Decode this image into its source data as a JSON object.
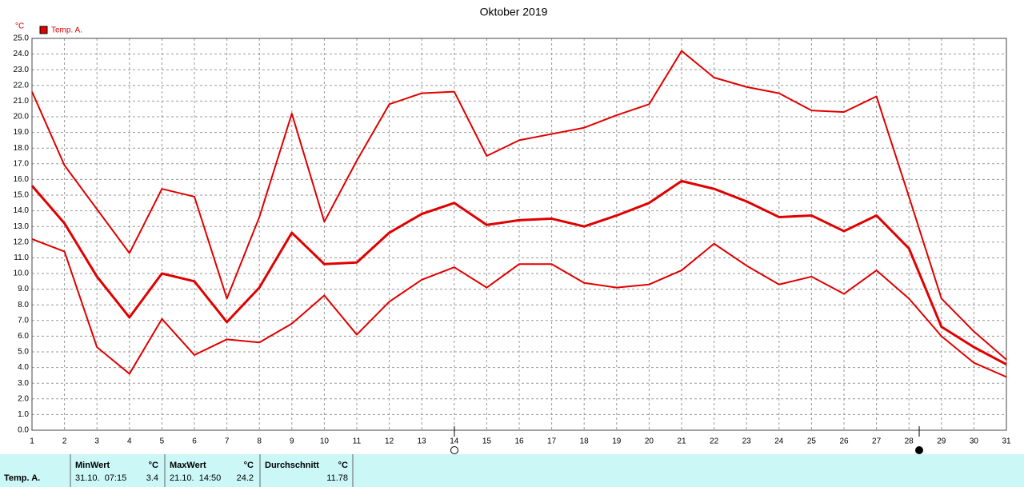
{
  "chart_data": {
    "type": "line",
    "title": "Oktober 2019",
    "y_unit": "°C",
    "legend_label": "Temp. A.",
    "legend_color": "#e00000",
    "x": [
      1,
      2,
      3,
      4,
      5,
      6,
      7,
      8,
      9,
      10,
      11,
      12,
      13,
      14,
      15,
      16,
      17,
      18,
      19,
      20,
      21,
      22,
      23,
      24,
      25,
      26,
      27,
      28,
      29,
      30,
      31
    ],
    "xlim": [
      1,
      31
    ],
    "xticks": [
      1,
      2,
      3,
      4,
      5,
      6,
      7,
      8,
      9,
      10,
      11,
      12,
      13,
      14,
      15,
      16,
      17,
      18,
      19,
      20,
      21,
      22,
      23,
      24,
      25,
      26,
      27,
      28,
      29,
      30,
      31
    ],
    "ylim": [
      0,
      25
    ],
    "yticks": [
      {
        "value": 0,
        "label": "0.0"
      },
      {
        "value": 1,
        "label": "1.0"
      },
      {
        "value": 2,
        "label": "2.0"
      },
      {
        "value": 3,
        "label": "3.0"
      },
      {
        "value": 4,
        "label": "4.0"
      },
      {
        "value": 5,
        "label": "5.0"
      },
      {
        "value": 6,
        "label": "6.0"
      },
      {
        "value": 7,
        "label": "7.0"
      },
      {
        "value": 8,
        "label": "8.0"
      },
      {
        "value": 9,
        "label": "9.0"
      },
      {
        "value": 10,
        "label": "10.0"
      },
      {
        "value": 11,
        "label": "11.0"
      },
      {
        "value": 12,
        "label": "12.0"
      },
      {
        "value": 13,
        "label": "13.0"
      },
      {
        "value": 14,
        "label": "14.0"
      },
      {
        "value": 15,
        "label": "15.0"
      },
      {
        "value": 16,
        "label": "16.0"
      },
      {
        "value": 17,
        "label": "17.0"
      },
      {
        "value": 18,
        "label": "18.0"
      },
      {
        "value": 19,
        "label": "19.0"
      },
      {
        "value": 20,
        "label": "20.0"
      },
      {
        "value": 21,
        "label": "21.0"
      },
      {
        "value": 22,
        "label": "22.0"
      },
      {
        "value": 23,
        "label": "23.0"
      },
      {
        "value": 24,
        "label": "24.0"
      },
      {
        "value": 25,
        "label": "25.0"
      }
    ],
    "grid": true,
    "series": [
      {
        "color": "#e00000",
        "width": 2,
        "values": [
          21.6,
          16.9,
          14.1,
          11.3,
          15.4,
          14.9,
          8.4,
          13.6,
          20.2,
          13.3,
          17.2,
          20.8,
          21.5,
          21.6,
          17.5,
          18.5,
          18.9,
          19.3,
          20.1,
          20.8,
          24.2,
          22.5,
          21.9,
          21.5,
          20.4,
          20.3,
          21.3,
          14.9,
          8.4,
          6.3,
          4.5
        ]
      },
      {
        "color": "#e00000",
        "width": 3,
        "values": [
          15.6,
          13.2,
          9.8,
          7.2,
          10.0,
          9.5,
          6.9,
          9.1,
          12.6,
          10.6,
          10.7,
          12.6,
          13.8,
          14.5,
          13.1,
          13.4,
          13.5,
          13.0,
          13.7,
          14.5,
          15.9,
          15.4,
          14.6,
          13.6,
          13.7,
          12.7,
          13.7,
          11.6,
          6.6,
          5.3,
          4.2
        ]
      },
      {
        "color": "#e00000",
        "width": 2,
        "values": [
          12.2,
          11.4,
          5.3,
          3.6,
          7.1,
          4.8,
          5.8,
          5.6,
          6.8,
          8.6,
          6.1,
          8.2,
          9.6,
          10.4,
          9.1,
          10.6,
          10.6,
          9.4,
          9.1,
          9.3,
          10.2,
          11.9,
          10.5,
          9.3,
          9.8,
          8.7,
          10.2,
          8.4,
          6.0,
          4.3,
          3.4
        ]
      }
    ]
  },
  "stats_table": {
    "row_label": "Temp. A.",
    "min": {
      "header": "MinWert",
      "unit": "°C",
      "time": "31.10.  07:15",
      "value": 3.4
    },
    "max": {
      "header": "MaxWert",
      "unit": "°C",
      "time": "21.10.  14:50",
      "value": 24.2
    },
    "avg": {
      "header": "Durchschnitt",
      "unit": "°C",
      "value": 11.78
    }
  }
}
